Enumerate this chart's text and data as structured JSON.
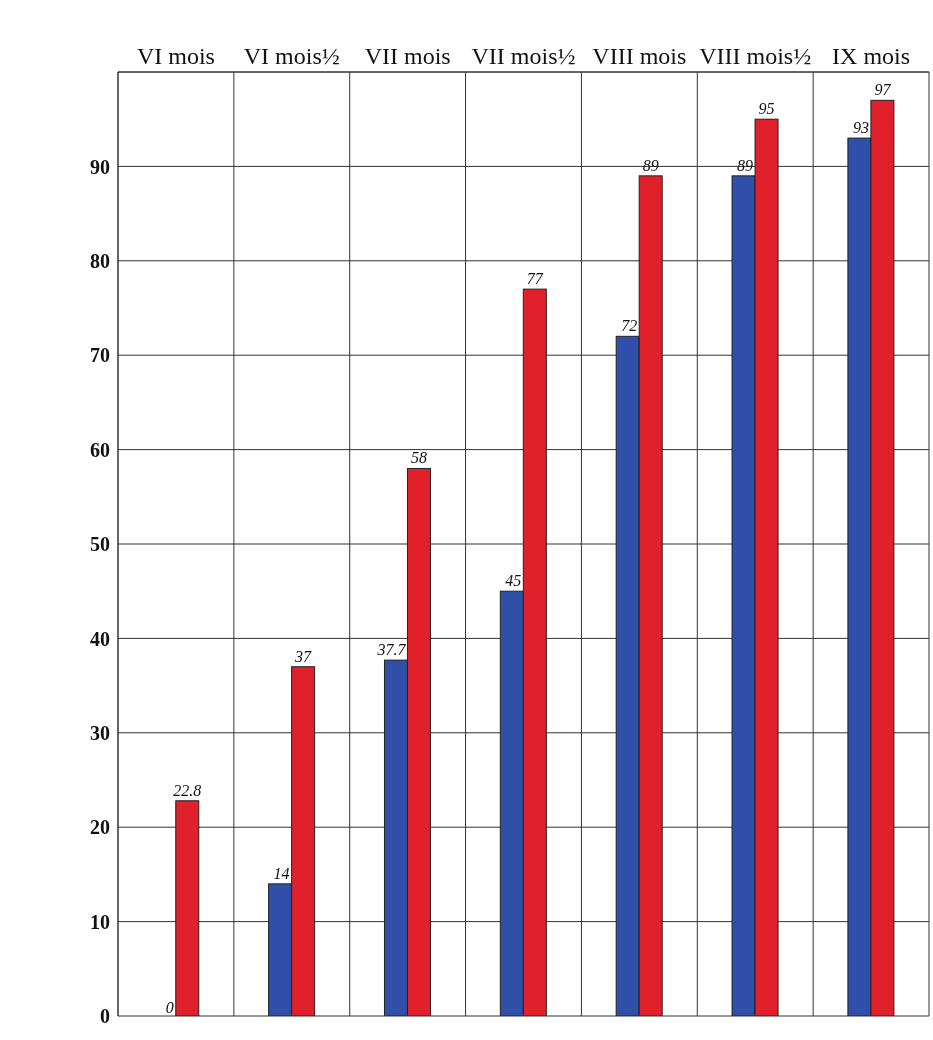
{
  "chart_data": {
    "type": "bar",
    "categories": [
      "VI mois",
      "VI mois½",
      "VII mois",
      "VII mois½",
      "VIII mois",
      "VIII mois½",
      "IX mois"
    ],
    "series": [
      {
        "color": "#2f4fa8",
        "values": [
          0,
          14,
          37.7,
          45,
          72,
          89,
          93
        ],
        "value_labels": [
          "0",
          "14",
          "37.7",
          "45",
          "72",
          "89",
          "93"
        ]
      },
      {
        "color": "#e0202a",
        "values": [
          22.8,
          37,
          58,
          77,
          89,
          95,
          97
        ],
        "value_labels": [
          "22.8",
          "37",
          "58",
          "77",
          "89",
          "95",
          "97"
        ]
      }
    ],
    "ylim": [
      0,
      100
    ],
    "yticks": [
      0,
      10,
      20,
      30,
      40,
      50,
      60,
      70,
      80,
      90,
      {
        "value": 100,
        "label": null
      }
    ],
    "grid": true
  }
}
